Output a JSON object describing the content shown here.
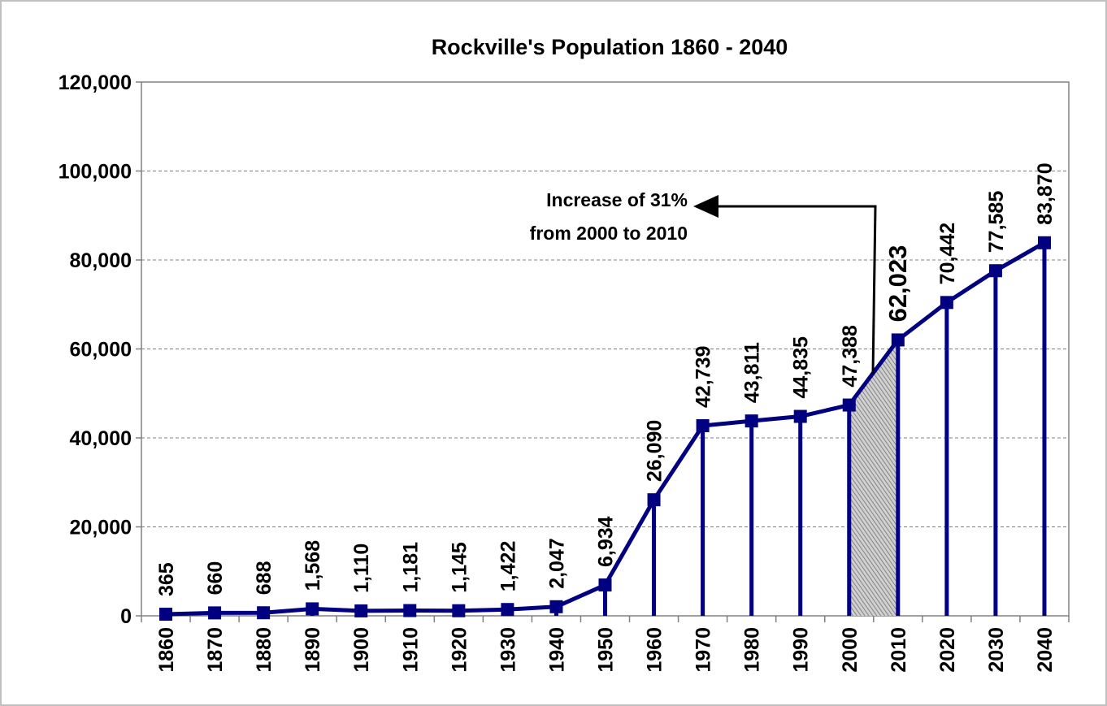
{
  "chart_data": {
    "type": "line",
    "title": "Rockville's Population 1860 - 2040",
    "xlabel": "",
    "ylabel": "",
    "categories": [
      "1860",
      "1870",
      "1880",
      "1890",
      "1900",
      "1910",
      "1920",
      "1930",
      "1940",
      "1950",
      "1960",
      "1970",
      "1980",
      "1990",
      "2000",
      "2010",
      "2020",
      "2030",
      "2040"
    ],
    "values": [
      365,
      660,
      688,
      1568,
      1110,
      1181,
      1145,
      1422,
      2047,
      6934,
      26090,
      42739,
      43811,
      44835,
      47388,
      62023,
      70442,
      77585,
      83870
    ],
    "data_labels": [
      "365",
      "660",
      "688",
      "1,568",
      "1,110",
      "1,181",
      "1,145",
      "1,422",
      "2,047",
      "6,934",
      "26,090",
      "42,739",
      "43,811",
      "44,835",
      "47,388",
      "62,023",
      "70,442",
      "77,585",
      "83,870"
    ],
    "ylim": [
      0,
      120000
    ],
    "yticks": [
      0,
      20000,
      40000,
      60000,
      80000,
      100000,
      120000
    ],
    "ytick_labels": [
      "0",
      "20,000",
      "40,000",
      "60,000",
      "80,000",
      "100,000",
      "120,000"
    ],
    "grid": "horizontal dashed",
    "drop_lines": true,
    "shaded_interval": [
      "2000",
      "2010"
    ],
    "highlight_label_category": "2010",
    "annotation": {
      "lines": [
        "Increase of 31%",
        "from 2000 to 2010"
      ]
    },
    "colors": {
      "series": "#000080",
      "shade": "#a8a8a8",
      "grid": "#808080",
      "background": "#c0c0c0",
      "plot": "#ffffff"
    }
  }
}
